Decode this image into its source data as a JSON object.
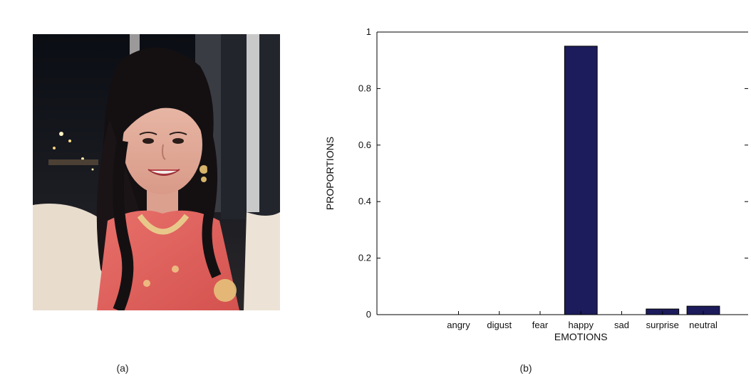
{
  "panels": {
    "left_label": "(a)",
    "right_label": "(b)"
  },
  "photo": {
    "subject": "portrait"
  },
  "colors": {
    "bar_fill": "#1c1c5c",
    "bar_stroke": "#000000",
    "axis": "#000000"
  },
  "chart_data": {
    "type": "bar",
    "title": "",
    "xlabel": "EMOTIONS",
    "ylabel": "PROPORTIONS",
    "categories": [
      "angry",
      "digust",
      "fear",
      "happy",
      "sad",
      "surprise",
      "neutral"
    ],
    "values": [
      0.0,
      0.0,
      0.0,
      0.95,
      0.0,
      0.02,
      0.03
    ],
    "ylim": [
      0,
      1
    ],
    "yticks": [
      0,
      0.2,
      0.4,
      0.6,
      0.8,
      1
    ],
    "ytick_labels": [
      "0",
      "0.2",
      "0.4",
      "0.6",
      "0.8",
      "1"
    ],
    "grid": false,
    "legend": "none"
  }
}
